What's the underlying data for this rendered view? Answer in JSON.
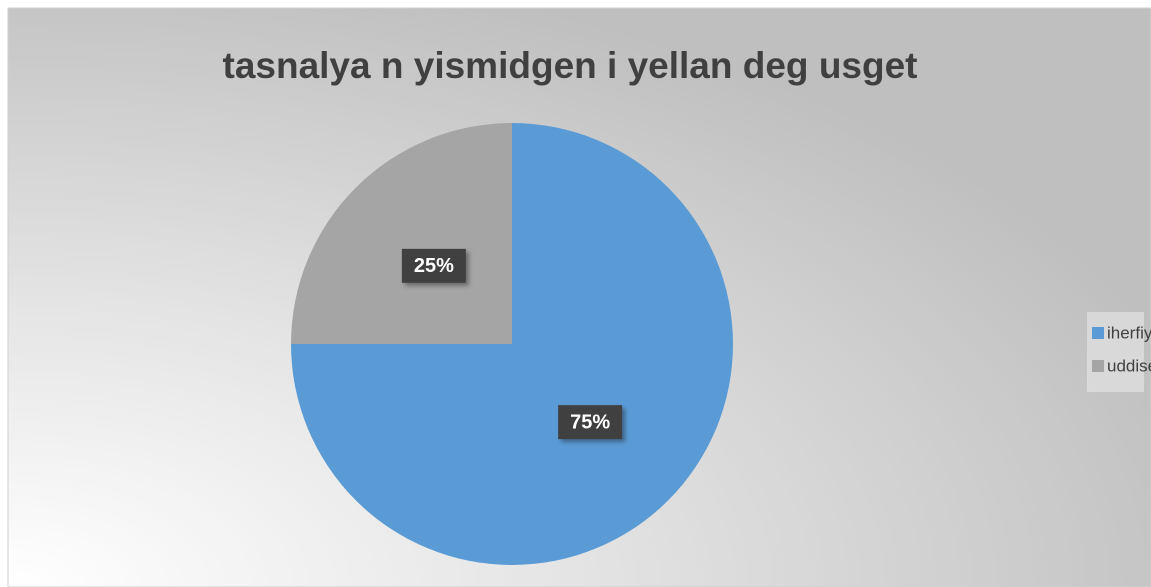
{
  "chart_data": {
    "type": "pie",
    "title": "tasnalya n yismidgen i yellan deg usget",
    "categories": [
      "iherfiyen",
      "uddisen"
    ],
    "values": [
      75,
      25
    ],
    "value_labels": [
      "75%",
      "25%"
    ],
    "colors": [
      "#5b9bd5",
      "#a5a5a5"
    ],
    "legend": "right"
  }
}
